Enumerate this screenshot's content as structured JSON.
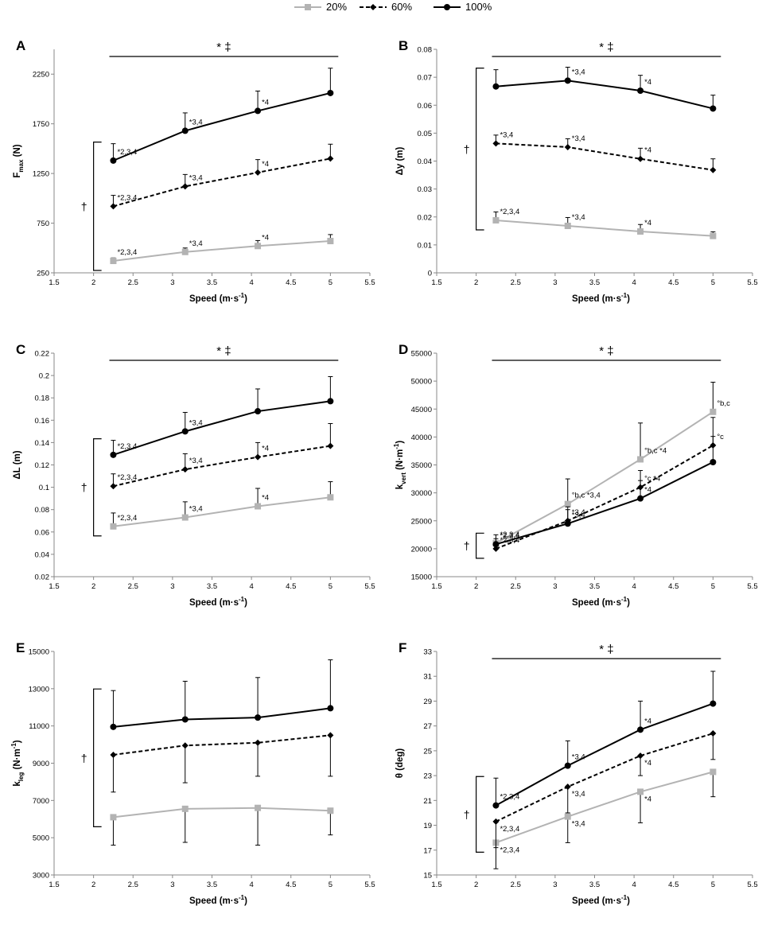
{
  "legend": {
    "items": [
      {
        "label": "20%",
        "color": "#b3b3b3",
        "dash": false,
        "marker": "square"
      },
      {
        "label": "60%",
        "color": "#000000",
        "dash": true,
        "marker": "diamond"
      },
      {
        "label": "100%",
        "color": "#000000",
        "dash": false,
        "marker": "circle"
      }
    ]
  },
  "chart_data": [
    {
      "letter": "A",
      "type": "line",
      "ylabel_main": "F",
      "ylabel_sub": "max",
      "ylabel_after": " (N)",
      "xlabel_main": "Speed (m·s",
      "xlabel_sup": "-1",
      "xlabel_after": ")",
      "x": [
        2.25,
        3.16,
        4.08,
        5.0
      ],
      "xlim": [
        1.5,
        5.5
      ],
      "xticks": [
        1.5,
        2,
        2.5,
        3,
        3.5,
        4,
        4.5,
        5,
        5.5
      ],
      "xtick_labels": [
        "1.5",
        "2",
        "2.5",
        "3",
        "3.5",
        "4",
        "4.5",
        "5",
        "5.5"
      ],
      "ylim": [
        250,
        2500
      ],
      "yticks": [
        250,
        750,
        1250,
        1750,
        2250
      ],
      "ytick_labels": [
        "250",
        "750",
        "1250",
        "1750",
        "2250"
      ],
      "series": [
        {
          "name": "20%",
          "values": [
            370,
            460,
            520,
            570
          ],
          "errors": [
            30,
            40,
            55,
            65
          ],
          "labels": [
            "*2,3,4",
            "*3,4",
            "*4",
            ""
          ]
        },
        {
          "name": "60%",
          "values": [
            920,
            1120,
            1260,
            1400
          ],
          "errors": [
            110,
            120,
            130,
            145
          ],
          "labels": [
            "*2,3,4",
            "*3,4",
            "*4",
            ""
          ]
        },
        {
          "name": "100%",
          "values": [
            1380,
            1680,
            1880,
            2060
          ],
          "errors": [
            170,
            180,
            200,
            250
          ],
          "labels": [
            "*2,3,4",
            "*3,4",
            "*4",
            ""
          ]
        }
      ],
      "sig_top": "* ‡",
      "sig_side": "†"
    },
    {
      "letter": "B",
      "type": "line",
      "ylabel_main": "Δy (m)",
      "ylabel_sub": "",
      "ylabel_after": "",
      "xlabel_main": "Speed (m·s",
      "xlabel_sup": "-1",
      "xlabel_after": ")",
      "x": [
        2.25,
        3.16,
        4.08,
        5.0
      ],
      "xlim": [
        1.5,
        5.5
      ],
      "xticks": [
        1.5,
        2,
        2.5,
        3,
        3.5,
        4,
        4.5,
        5,
        5.5
      ],
      "xtick_labels": [
        "1.5",
        "2",
        "2.5",
        "3",
        "3.5",
        "4",
        "4.5",
        "5",
        "5.5"
      ],
      "ylim": [
        0,
        0.08
      ],
      "yticks": [
        0,
        0.01,
        0.02,
        0.03,
        0.04,
        0.05,
        0.06,
        0.07,
        0.08
      ],
      "ytick_labels": [
        "0",
        "0.01",
        "0.02",
        "0.03",
        "0.04",
        "0.05",
        "0.06",
        "0.07",
        "0.08"
      ],
      "series": [
        {
          "name": "20%",
          "values": [
            0.0188,
            0.0168,
            0.0148,
            0.0132
          ],
          "errors": [
            0.003,
            0.003,
            0.0025,
            0.0015
          ],
          "labels": [
            "*2,3,4",
            "*3,4",
            "*4",
            ""
          ]
        },
        {
          "name": "60%",
          "values": [
            0.0463,
            0.045,
            0.0408,
            0.0368
          ],
          "errors": [
            0.003,
            0.003,
            0.0038,
            0.004
          ],
          "labels": [
            "*3,4",
            "*3,4",
            "*4",
            ""
          ]
        },
        {
          "name": "100%",
          "values": [
            0.0667,
            0.0688,
            0.0652,
            0.0588
          ],
          "errors": [
            0.006,
            0.0048,
            0.0055,
            0.0048
          ],
          "labels": [
            "",
            "*3,4",
            "*4",
            ""
          ]
        }
      ],
      "sig_top": "* ‡",
      "sig_side": "†"
    },
    {
      "letter": "C",
      "type": "line",
      "ylabel_main": "ΔL (m)",
      "ylabel_sub": "",
      "ylabel_after": "",
      "xlabel_main": "Speed (m·s",
      "xlabel_sup": "-1",
      "xlabel_after": ")",
      "x": [
        2.25,
        3.16,
        4.08,
        5.0
      ],
      "xlim": [
        1.5,
        5.5
      ],
      "xticks": [
        1.5,
        2,
        2.5,
        3,
        3.5,
        4,
        4.5,
        5,
        5.5
      ],
      "xtick_labels": [
        "1.5",
        "2",
        "2.5",
        "3",
        "3.5",
        "4",
        "4.5",
        "5",
        "5.5"
      ],
      "ylim": [
        0.02,
        0.22
      ],
      "yticks": [
        0.02,
        0.04,
        0.06,
        0.08,
        0.1,
        0.12,
        0.14,
        0.16,
        0.18,
        0.2,
        0.22
      ],
      "ytick_labels": [
        "0.02",
        "0.04",
        "0.06",
        "0.08",
        "0.1",
        "0.12",
        "0.14",
        "0.16",
        "0.18",
        "0.2",
        "0.22"
      ],
      "series": [
        {
          "name": "20%",
          "values": [
            0.065,
            0.073,
            0.083,
            0.091
          ],
          "errors": [
            0.012,
            0.014,
            0.016,
            0.014
          ],
          "labels": [
            "*2,3,4",
            "*3,4",
            "*4",
            ""
          ]
        },
        {
          "name": "60%",
          "values": [
            0.101,
            0.116,
            0.127,
            0.137
          ],
          "errors": [
            0.011,
            0.014,
            0.013,
            0.02
          ],
          "labels": [
            "*2,3,4",
            "*3,4",
            "*4",
            ""
          ]
        },
        {
          "name": "100%",
          "values": [
            0.129,
            0.15,
            0.168,
            0.177
          ],
          "errors": [
            0.013,
            0.017,
            0.02,
            0.022
          ],
          "labels": [
            "*2,3,4",
            "*3,4",
            "",
            ""
          ]
        }
      ],
      "sig_top": "* ‡",
      "sig_side": "†"
    },
    {
      "letter": "D",
      "type": "line",
      "ylabel_main": "k",
      "ylabel_sub": "vert",
      "ylabel_after": " (N·m",
      "ylabel_sup": "-1",
      "ylabel_end": ")",
      "xlabel_main": "Speed (m·s",
      "xlabel_sup": "-1",
      "xlabel_after": ")",
      "x": [
        2.25,
        3.16,
        4.08,
        5.0
      ],
      "xlim": [
        1.5,
        5.5
      ],
      "xticks": [
        1.5,
        2,
        2.5,
        3,
        3.5,
        4,
        4.5,
        5,
        5.5
      ],
      "xtick_labels": [
        "1.5",
        "2",
        "2.5",
        "3",
        "3.5",
        "4",
        "4.5",
        "5",
        "5.5"
      ],
      "ylim": [
        15000,
        55000
      ],
      "yticks": [
        15000,
        20000,
        25000,
        30000,
        35000,
        40000,
        45000,
        50000,
        55000
      ],
      "ytick_labels": [
        "15000",
        "20000",
        "25000",
        "30000",
        "35000",
        "40000",
        "45000",
        "50000",
        "55000"
      ],
      "series": [
        {
          "name": "20%",
          "values": [
            21000,
            28000,
            36000,
            44500
          ],
          "errors": [
            1500,
            4500,
            6500,
            5300
          ],
          "labels": [
            "*2,3,4",
            "°b,c  *3,4",
            "°b,c  *4",
            "°b,c"
          ]
        },
        {
          "name": "60%",
          "values": [
            20000,
            25000,
            31000,
            38500
          ],
          "errors": [
            800,
            2500,
            3000,
            5000
          ],
          "labels": [
            "*2,3,4",
            "*3,4",
            "°c  *4",
            "°c"
          ]
        },
        {
          "name": "100%",
          "values": [
            20800,
            24500,
            29000,
            35500
          ],
          "errors": [
            1000,
            2500,
            3200,
            4600
          ],
          "labels": [
            "*2,3,4",
            "*3,4",
            "*4",
            ""
          ]
        }
      ],
      "sig_top": "* ‡",
      "sig_side": "†"
    },
    {
      "letter": "E",
      "type": "line",
      "ylabel_main": "k",
      "ylabel_sub": "leg",
      "ylabel_after": " (N·m",
      "ylabel_sup": "-1",
      "ylabel_end": ")",
      "xlabel_main": "Speed (m·s",
      "xlabel_sup": "-1",
      "xlabel_after": ")",
      "x": [
        2.25,
        3.16,
        4.08,
        5.0
      ],
      "xlim": [
        1.5,
        5.5
      ],
      "xticks": [
        1.5,
        2,
        2.5,
        3,
        3.5,
        4,
        4.5,
        5,
        5.5
      ],
      "xtick_labels": [
        "1.5",
        "2",
        "2.5",
        "3",
        "3.5",
        "4",
        "4.5",
        "5",
        "5.5"
      ],
      "ylim": [
        3000,
        15000
      ],
      "yticks": [
        3000,
        5000,
        7000,
        9000,
        11000,
        13000,
        15000
      ],
      "ytick_labels": [
        "3000",
        "5000",
        "7000",
        "9000",
        "11000",
        "13000",
        "15000"
      ],
      "series": [
        {
          "name": "20%",
          "values": [
            6100,
            6550,
            6600,
            6450
          ],
          "errors": [
            1500,
            1800,
            2000,
            1300
          ],
          "errors_dir": "down",
          "labels": [
            "",
            "",
            "",
            ""
          ]
        },
        {
          "name": "60%",
          "values": [
            9450,
            9950,
            10100,
            10500
          ],
          "errors": [
            2000,
            2000,
            1800,
            2200
          ],
          "errors_dir": "down",
          "labels": [
            "",
            "",
            "",
            ""
          ]
        },
        {
          "name": "100%",
          "values": [
            10950,
            11350,
            11450,
            11950
          ],
          "errors": [
            1950,
            2050,
            2150,
            2600
          ],
          "labels": [
            "",
            "",
            "",
            ""
          ]
        }
      ],
      "sig_top": "",
      "sig_side": "†"
    },
    {
      "letter": "F",
      "type": "line",
      "ylabel_main": "θ (deg)",
      "ylabel_sub": "",
      "ylabel_after": "",
      "xlabel_main": "Speed (m·s",
      "xlabel_sup": "-1",
      "xlabel_after": ")",
      "x": [
        2.25,
        3.16,
        4.08,
        5.0
      ],
      "xlim": [
        1.5,
        5.5
      ],
      "xticks": [
        1.5,
        2,
        2.5,
        3,
        3.5,
        4,
        4.5,
        5,
        5.5
      ],
      "xtick_labels": [
        "1.5",
        "2",
        "2.5",
        "3",
        "3.5",
        "4",
        "4.5",
        "5",
        "5.5"
      ],
      "ylim": [
        15,
        33
      ],
      "yticks": [
        15,
        17,
        19,
        21,
        23,
        25,
        27,
        29,
        31,
        33
      ],
      "ytick_labels": [
        "15",
        "17",
        "19",
        "21",
        "23",
        "25",
        "27",
        "29",
        "31",
        "33"
      ],
      "series": [
        {
          "name": "20%",
          "values": [
            17.6,
            19.7,
            21.7,
            23.3
          ],
          "errors": [
            2.1,
            2.1,
            2.5,
            2.0
          ],
          "errors_dir": "down",
          "labels": [
            "*2,3,4",
            "*3,4",
            "*4",
            ""
          ]
        },
        {
          "name": "60%",
          "values": [
            19.3,
            22.1,
            24.6,
            26.4
          ],
          "errors": [
            2.1,
            2.1,
            1.6,
            2.1
          ],
          "errors_dir": "down",
          "labels": [
            "*2,3,4",
            "*3,4",
            "*4",
            ""
          ]
        },
        {
          "name": "100%",
          "values": [
            20.6,
            23.8,
            26.7,
            28.8
          ],
          "errors": [
            2.2,
            2.0,
            2.3,
            2.6
          ],
          "labels": [
            "*2,3,4",
            "*3,4",
            "*4",
            ""
          ]
        }
      ],
      "sig_top": "* ‡",
      "sig_side": "†"
    }
  ]
}
